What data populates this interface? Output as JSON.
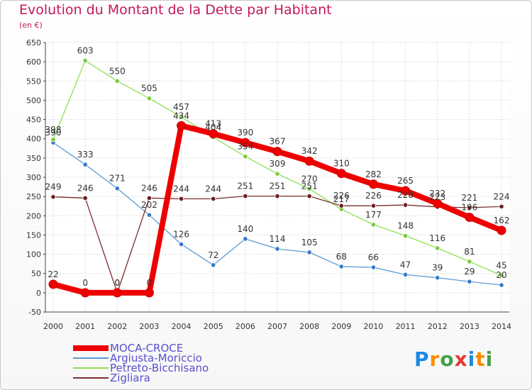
{
  "title": "Evolution du Montant de la Dette par Habitant",
  "unit_label": "(en €)",
  "logo": {
    "letters": [
      "P",
      "r",
      "o",
      "x",
      "i",
      "t",
      "i"
    ],
    "colors": [
      "#1e88e5",
      "#fb8c00",
      "#43a047",
      "#e53935",
      "#1e88e5",
      "#fb8c00",
      "#43a047"
    ]
  },
  "chart_data": {
    "type": "line",
    "x": [
      "2000",
      "2001",
      "2002",
      "2003",
      "2004",
      "2005",
      "2006",
      "2007",
      "2008",
      "2009",
      "2010",
      "2011",
      "2012",
      "2013",
      "2014"
    ],
    "ylim": [
      -50,
      650
    ],
    "yticks": [
      -50,
      0,
      50,
      100,
      150,
      200,
      250,
      300,
      350,
      400,
      450,
      500,
      550,
      600,
      650
    ],
    "grid": true,
    "legend_position": "bottom-left",
    "series": [
      {
        "name": "MOCA-CROCE",
        "color": "#ee0000",
        "marker": "#ee0000",
        "thick": true,
        "values": [
          22,
          0,
          0,
          0,
          434,
          413,
          390,
          367,
          342,
          310,
          282,
          265,
          232,
          196,
          162
        ],
        "labels": [
          "22",
          "0",
          "0",
          "0",
          "434",
          "413",
          "390",
          "367",
          "342",
          "310",
          "282",
          "265",
          "232",
          "196",
          "162"
        ]
      },
      {
        "name": "Argiusta-Moriccio",
        "color": "#5b9bd5",
        "marker": "#3a78c2",
        "thick": false,
        "values": [
          390,
          333,
          271,
          202,
          126,
          72,
          140,
          114,
          105,
          68,
          66,
          47,
          39,
          29,
          20
        ],
        "labels": [
          "390",
          "333",
          "271",
          "202",
          "126",
          "72",
          "140",
          "114",
          "105",
          "68",
          "66",
          "47",
          "39",
          "29",
          "20"
        ]
      },
      {
        "name": "Petreto-Bicchisano",
        "color": "#90e050",
        "marker": "#7ac943",
        "thick": false,
        "values": [
          398,
          603,
          550,
          505,
          457,
          404,
          354,
          309,
          270,
          217,
          177,
          148,
          116,
          81,
          45
        ],
        "labels": [
          "398",
          "603",
          "550",
          "505",
          "457",
          "404",
          "354",
          "309",
          "270",
          "217",
          "177",
          "148",
          "116",
          "81",
          "45"
        ]
      },
      {
        "name": "Zigliara",
        "color": "#7a2e2e",
        "marker": "#6b1f1f",
        "thick": false,
        "values": [
          249,
          246,
          0,
          246,
          244,
          244,
          251,
          251,
          251,
          226,
          226,
          228,
          223,
          221,
          224
        ],
        "labels": [
          "249",
          "246",
          "0",
          "246",
          "244",
          "244",
          "251",
          "251",
          "251",
          "226",
          "226",
          "228",
          "223",
          "221",
          "224"
        ]
      }
    ]
  }
}
